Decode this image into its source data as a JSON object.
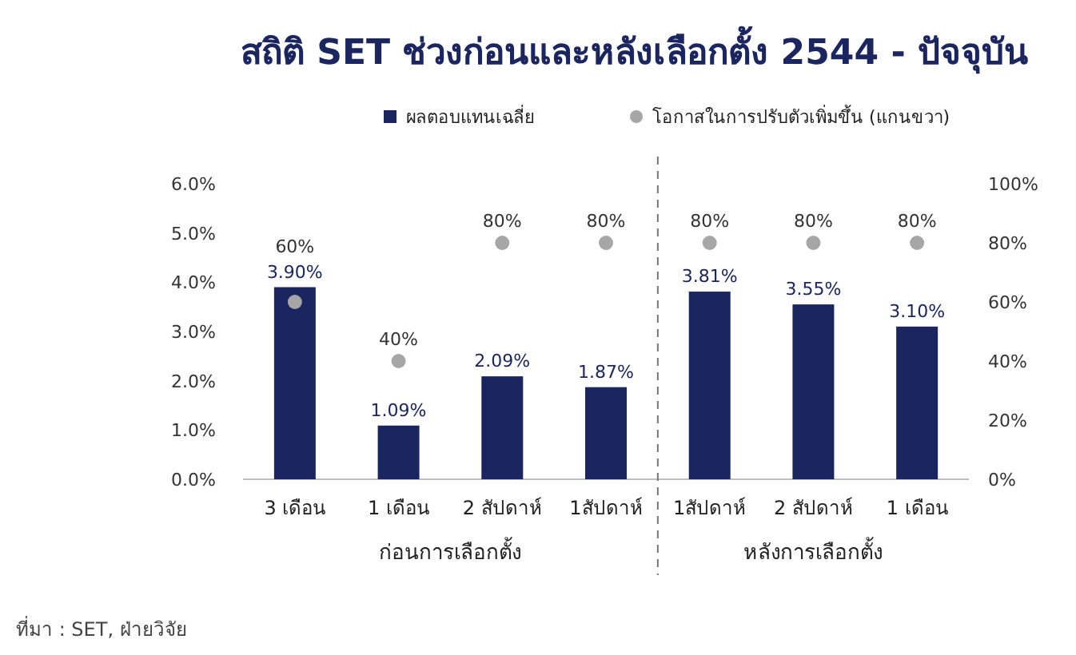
{
  "chart_data": {
    "type": "bar",
    "title": "สถิติ SET ช่วงก่อนและหลังเลือกตั้ง 2544 - ปัจจุบัน",
    "categories": [
      "3 เดือน",
      "1 เดือน",
      "2 สัปดาห์",
      "1สัปดาห์",
      "1สัปดาห์",
      "2 สัปดาห์",
      "1 เดือน"
    ],
    "series": [
      {
        "name": "ผลตอบแทนเฉลี่ย",
        "color": "#1b2660",
        "values": [
          3.9,
          1.09,
          2.09,
          1.87,
          3.81,
          3.55,
          3.1
        ],
        "value_labels": [
          "3.90%",
          "1.09%",
          "2.09%",
          "1.87%",
          "3.81%",
          "3.55%",
          "3.10%"
        ]
      },
      {
        "name": "โอกาสในการปรับตัวเพิ่มขึ้น (แกนขวา)",
        "type": "scatter",
        "axis": "y2",
        "color": "#a6a6a6",
        "marker": "circle",
        "values": [
          60,
          40,
          80,
          80,
          80,
          80,
          80
        ],
        "value_labels": [
          "60%",
          "40%",
          "80%",
          "80%",
          "80%",
          "80%",
          "80%"
        ]
      }
    ],
    "ylim": [
      0,
      6
    ],
    "yticks": [
      {
        "value": 0,
        "label": "0.0%"
      },
      {
        "value": 1,
        "label": "1.0%"
      },
      {
        "value": 2,
        "label": "2.0%"
      },
      {
        "value": 3,
        "label": "3.0%"
      },
      {
        "value": 4,
        "label": "4.0%"
      },
      {
        "value": 5,
        "label": "5.0%"
      },
      {
        "value": 6,
        "label": "6.0%"
      }
    ],
    "y2lim": [
      0,
      100
    ],
    "y2ticks": [
      {
        "value": 0,
        "label": "0%"
      },
      {
        "value": 20,
        "label": "20%"
      },
      {
        "value": 40,
        "label": "40%"
      },
      {
        "value": 60,
        "label": "60%"
      },
      {
        "value": 80,
        "label": "80%"
      },
      {
        "value": 100,
        "label": "100%"
      }
    ],
    "annotations": [
      "ก่อนการเลือกตั้ง",
      "หลังการเลือกตั้ง",
      "ที่มา : SET, ฝ่ายวิจัย"
    ],
    "legend": "top",
    "grid": false
  }
}
